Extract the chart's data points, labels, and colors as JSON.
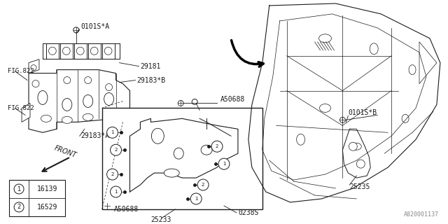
{
  "bg_color": "#ffffff",
  "line_color": "#1a1a1a",
  "text_color": "#1a1a1a",
  "fig_width": 6.4,
  "fig_height": 3.2,
  "dpi": 100,
  "diagram_number": "A820001137",
  "legend": [
    {
      "symbol": "1",
      "code": "16139"
    },
    {
      "symbol": "2",
      "code": "16529"
    }
  ]
}
